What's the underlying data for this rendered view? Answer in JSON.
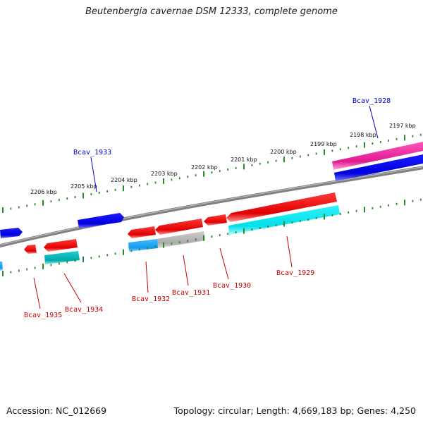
{
  "title": "Beutenbergia cavernae DSM 12333, complete genome",
  "footer": {
    "accession": "Accession: NC_012669",
    "info": "Topology: circular; Length: 4,669,183 bp; Genes: 4,250"
  },
  "colors": {
    "backbone": "#888888",
    "tick": "#2a8a2a",
    "forward_gene": "#0000ee",
    "reverse_gene": "#ee0000",
    "forward_label": "#0000cc",
    "reverse_label": "#cc0000",
    "pink_feature": "#ee2299",
    "cyan_feature": "#00e5ee",
    "teal_feature": "#00bbbb",
    "light_blue_feature": "#22aaee",
    "gray_feature": "#aaaaaa"
  },
  "scale_labels": [
    "2197 kbp",
    "2198 kbp",
    "2199 kbp",
    "2200 kbp",
    "2201 kbp",
    "2202 kbp",
    "2203 kbp",
    "2204 kbp",
    "2205 kbp",
    "2206 kbp"
  ],
  "gene_labels": [
    {
      "name": "Bcav_1928",
      "strand": "forward"
    },
    {
      "name": "Bcav_1933",
      "strand": "forward"
    },
    {
      "name": "Bcav_1929",
      "strand": "reverse"
    },
    {
      "name": "Bcav_1930",
      "strand": "reverse"
    },
    {
      "name": "Bcav_1931",
      "strand": "reverse"
    },
    {
      "name": "Bcav_1932",
      "strand": "reverse"
    },
    {
      "name": "Bcav_1934",
      "strand": "reverse"
    },
    {
      "name": "Bcav_1935",
      "strand": "reverse"
    }
  ]
}
